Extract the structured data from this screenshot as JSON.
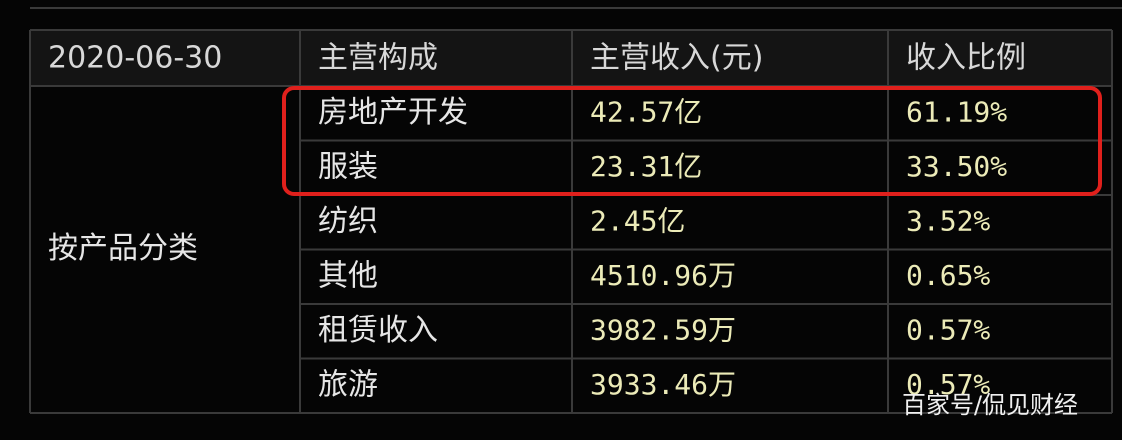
{
  "table": {
    "header": [
      "2020-06-30",
      "主营构成",
      "主营收入(元)",
      "收入比例"
    ],
    "group": "按产品分类",
    "rows": [
      [
        "房地产开发",
        "42.57亿",
        "61.19%"
      ],
      [
        "服装",
        "23.31亿",
        "33.50%"
      ],
      [
        "纺织",
        "2.45亿",
        "3.52%"
      ],
      [
        "其他",
        "4510.96万",
        "0.65%"
      ],
      [
        "租赁收入",
        "3982.59万",
        "0.57%"
      ],
      [
        "旅游",
        "3933.46万",
        "0.57%"
      ]
    ]
  },
  "watermark": "百家号/侃见财经"
}
